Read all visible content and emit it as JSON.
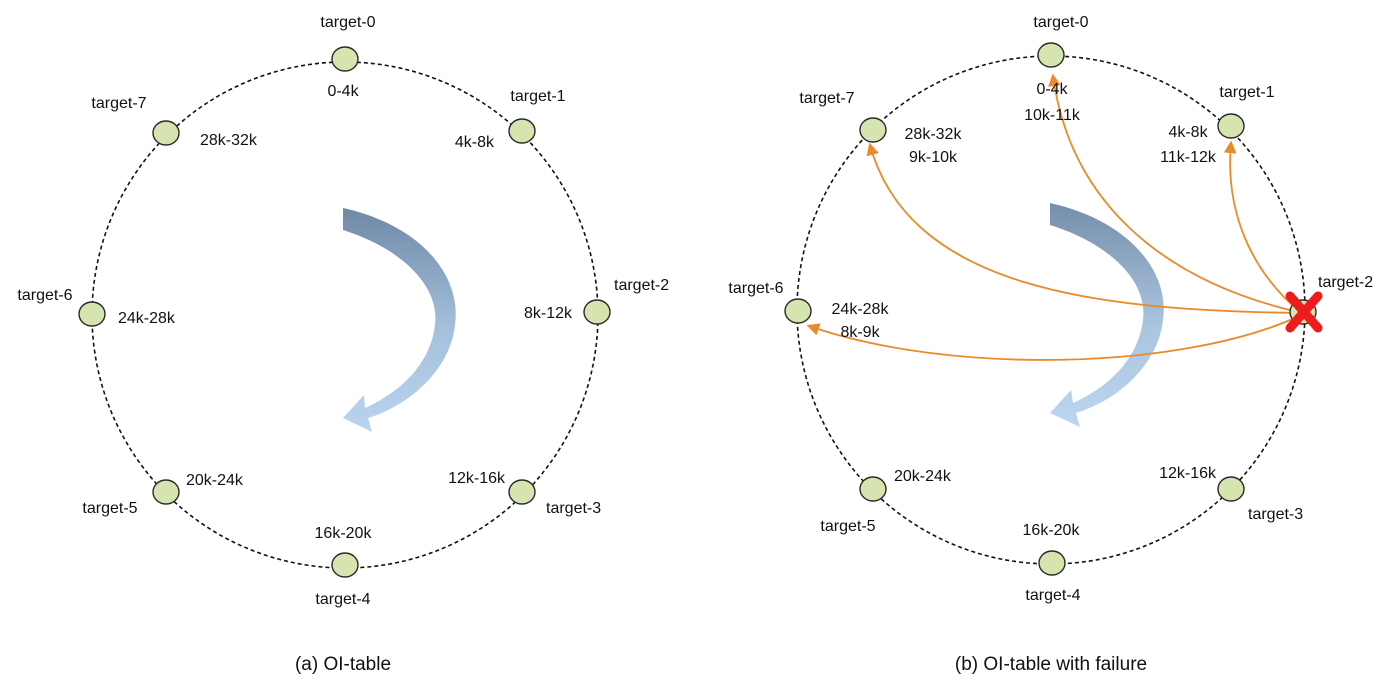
{
  "colors": {
    "node_fill": "#d6e4b0",
    "link": "#ea8a2a",
    "failure": "#ee1c1c",
    "arrow_dark": "#6e88a6",
    "arrow_light": "#b9d4ef"
  },
  "panels": [
    {
      "caption": "(a) OI-table",
      "nodes": [
        {
          "name": "target-0",
          "ranges": [
            "0-4k"
          ]
        },
        {
          "name": "target-1",
          "ranges": [
            "4k-8k"
          ]
        },
        {
          "name": "target-2",
          "ranges": [
            "8k-12k"
          ]
        },
        {
          "name": "target-3",
          "ranges": [
            "12k-16k"
          ]
        },
        {
          "name": "target-4",
          "ranges": [
            "16k-20k"
          ]
        },
        {
          "name": "target-5",
          "ranges": [
            "20k-24k"
          ]
        },
        {
          "name": "target-6",
          "ranges": [
            "24k-28k"
          ]
        },
        {
          "name": "target-7",
          "ranges": [
            "28k-32k"
          ]
        }
      ],
      "rotation_arrow_icon": "clockwise-arrow-icon"
    },
    {
      "caption": "(b) OI-table with failure",
      "nodes": [
        {
          "name": "target-0",
          "ranges": [
            "0-4k",
            "10k-11k"
          ]
        },
        {
          "name": "target-1",
          "ranges": [
            "4k-8k",
            "11k-12k"
          ]
        },
        {
          "name": "target-2",
          "ranges": [],
          "failed": true
        },
        {
          "name": "target-3",
          "ranges": [
            "12k-16k"
          ]
        },
        {
          "name": "target-4",
          "ranges": [
            "16k-20k"
          ]
        },
        {
          "name": "target-5",
          "ranges": [
            "20k-24k"
          ]
        },
        {
          "name": "target-6",
          "ranges": [
            "24k-28k",
            "8k-9k"
          ]
        },
        {
          "name": "target-7",
          "ranges": [
            "28k-32k",
            "9k-10k"
          ]
        }
      ],
      "redistribution": {
        "from": "target-2",
        "to": [
          "target-0",
          "target-1",
          "target-6",
          "target-7"
        ]
      },
      "failure_icon": "failure-x-icon",
      "rotation_arrow_icon": "clockwise-arrow-icon"
    }
  ]
}
